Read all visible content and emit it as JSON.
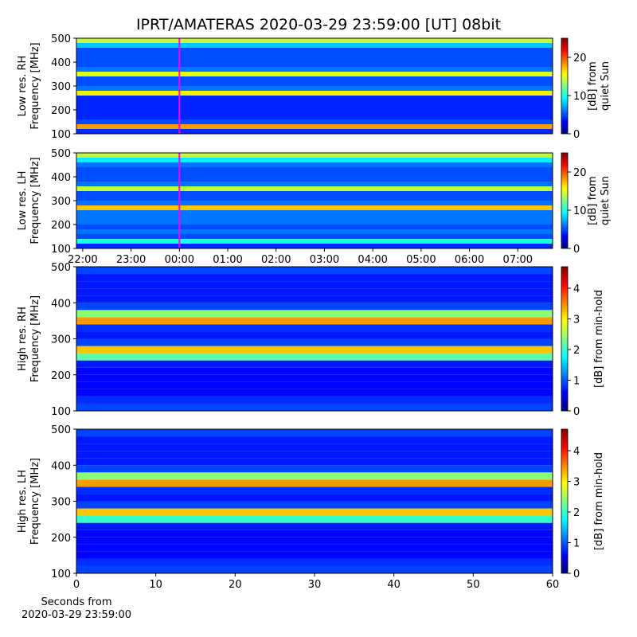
{
  "title": "IPRT/AMATERAS 2020-03-29 23:59:00 [UT]   08bit",
  "chart_data": [
    {
      "type": "heatmap",
      "ylabel": [
        "Low res. RH",
        "Frequency [MHz]"
      ],
      "colorbar_label": [
        "[dB] from",
        "quiet Sun"
      ],
      "ylim": [
        100,
        500
      ],
      "yticks": [
        100,
        200,
        300,
        400,
        500
      ],
      "xlim": [
        21.87,
        31.72
      ],
      "vline": 24,
      "vline_color": "#ff00ff",
      "clim": [
        0,
        25
      ],
      "cticks": [
        0,
        10,
        20
      ],
      "freq_bins": [
        100,
        120,
        140,
        160,
        180,
        200,
        220,
        240,
        260,
        280,
        300,
        320,
        340,
        360,
        380,
        400,
        420,
        440,
        460,
        480,
        500
      ],
      "values": [
        4,
        18,
        5,
        4,
        4,
        4,
        4,
        4,
        16,
        6,
        5,
        5,
        15,
        6,
        5,
        5,
        5,
        5,
        8,
        14
      ]
    },
    {
      "type": "heatmap",
      "ylabel": [
        "Low res. LH",
        "Frequency [MHz]"
      ],
      "colorbar_label": [
        "[dB] from",
        "quiet Sun"
      ],
      "ylim": [
        100,
        500
      ],
      "yticks": [
        100,
        200,
        300,
        400,
        500
      ],
      "xlim": [
        21.87,
        31.72
      ],
      "vline": 24,
      "vline_color": "#ff00ff",
      "xticks": [
        {
          "value": 22,
          "label": "22:00"
        },
        {
          "value": 23,
          "label": "23:00"
        },
        {
          "value": 24,
          "label": "00:00"
        },
        {
          "value": 25,
          "label": "01:00"
        },
        {
          "value": 26,
          "label": "02:00"
        },
        {
          "value": 27,
          "label": "03:00"
        },
        {
          "value": 28,
          "label": "04:00"
        },
        {
          "value": 29,
          "label": "05:00"
        },
        {
          "value": 30,
          "label": "06:00"
        },
        {
          "value": 31,
          "label": "07:00"
        }
      ],
      "clim": [
        0,
        25
      ],
      "cticks": [
        0,
        10,
        20
      ],
      "freq_bins": [
        100,
        120,
        140,
        160,
        180,
        200,
        220,
        240,
        260,
        280,
        300,
        320,
        340,
        360,
        380,
        400,
        420,
        440,
        460,
        480,
        500
      ],
      "values": [
        4,
        10,
        5,
        6,
        5,
        6,
        6,
        6,
        17,
        6,
        5,
        5,
        14,
        6,
        5,
        5,
        5,
        6,
        9,
        14
      ]
    },
    {
      "type": "heatmap",
      "ylabel": [
        "High res. RH",
        "Frequency [MHz]"
      ],
      "colorbar_label": [
        "[dB] from min-hold"
      ],
      "ylim": [
        100,
        500
      ],
      "yticks": [
        100,
        200,
        300,
        400,
        500
      ],
      "xlim": [
        0,
        60
      ],
      "clim": [
        0,
        4.7
      ],
      "cticks": [
        0,
        1,
        2,
        3,
        4
      ],
      "freq_bins": [
        100,
        120,
        140,
        160,
        180,
        200,
        220,
        240,
        260,
        280,
        300,
        320,
        340,
        360,
        380,
        400,
        420,
        440,
        460,
        480,
        500
      ],
      "values": [
        0.9,
        0.8,
        0.6,
        0.6,
        0.6,
        0.6,
        0.7,
        2.2,
        3.2,
        0.9,
        0.7,
        0.8,
        3.4,
        2.4,
        0.9,
        0.7,
        0.7,
        0.7,
        0.7,
        0.9
      ]
    },
    {
      "type": "heatmap",
      "ylabel": [
        "High res. LH",
        "Frequency [MHz]"
      ],
      "colorbar_label": [
        "[dB] from min-hold"
      ],
      "ylim": [
        100,
        500
      ],
      "yticks": [
        100,
        200,
        300,
        400,
        500
      ],
      "xlim": [
        0,
        60
      ],
      "xticks": [
        0,
        10,
        20,
        30,
        40,
        50,
        60
      ],
      "xlabel": [
        "Seconds from",
        "2020-03-29 23:59:00"
      ],
      "clim": [
        0,
        4.7
      ],
      "cticks": [
        0,
        1,
        2,
        3,
        4
      ],
      "freq_bins": [
        100,
        120,
        140,
        160,
        180,
        200,
        220,
        240,
        260,
        280,
        300,
        320,
        340,
        360,
        380,
        400,
        420,
        440,
        460,
        480,
        500
      ],
      "values": [
        0.9,
        0.8,
        0.6,
        0.6,
        0.6,
        0.6,
        0.7,
        2.0,
        3.2,
        0.9,
        0.7,
        0.8,
        3.4,
        2.4,
        0.9,
        0.7,
        0.7,
        0.7,
        0.7,
        0.9
      ]
    }
  ]
}
